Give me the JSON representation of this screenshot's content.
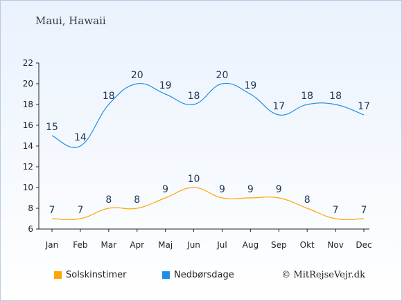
{
  "title": "Maui, Hawaii",
  "credit": "© MitRejseVejr.dk",
  "chart_data": {
    "type": "line",
    "categories": [
      "Jan",
      "Feb",
      "Mar",
      "Apr",
      "Maj",
      "Jun",
      "Jul",
      "Aug",
      "Sep",
      "Okt",
      "Nov",
      "Dec"
    ],
    "ylim": [
      6,
      22
    ],
    "yticks": [
      6,
      8,
      10,
      12,
      14,
      16,
      18,
      20,
      22
    ],
    "grid": false,
    "legend_position": "bottom",
    "series": [
      {
        "name": "Solskinstimer",
        "color": "#ffa500",
        "values": [
          7,
          7,
          8,
          8,
          9,
          10,
          9,
          9,
          9,
          8,
          7,
          7
        ]
      },
      {
        "name": "Nedbørsdage",
        "color": "#1e8fe6",
        "values": [
          15,
          14,
          18,
          20,
          19,
          18,
          20,
          19,
          17,
          18,
          18,
          17
        ]
      }
    ]
  }
}
